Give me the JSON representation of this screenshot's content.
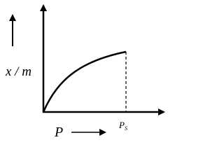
{
  "labels": {
    "y_axis": "x / m",
    "x_axis": "P",
    "saturation": {
      "text": "P",
      "subscript": "S"
    }
  }
}
